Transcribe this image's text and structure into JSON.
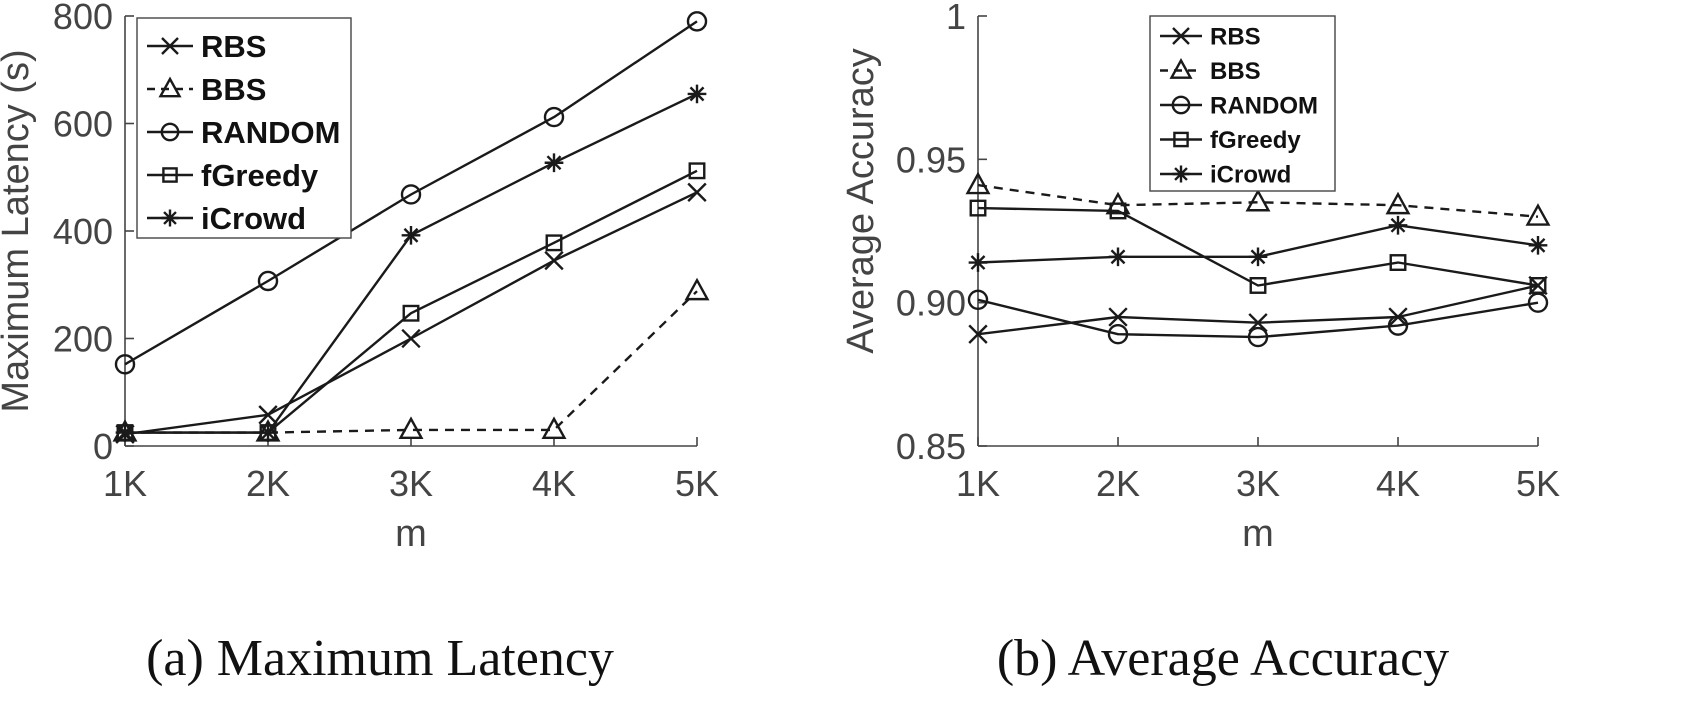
{
  "chart_data": [
    {
      "type": "line",
      "caption": "(a)  Maximum Latency",
      "xlabel": "m",
      "ylabel": "Maximum Latency (s)",
      "categories": [
        "1K",
        "2K",
        "3K",
        "4K",
        "5K"
      ],
      "ylim": [
        0,
        800
      ],
      "yticks": [
        0,
        200,
        400,
        600,
        800
      ],
      "ytick_labels": [
        "0",
        "200",
        "400",
        "600",
        "800"
      ],
      "grid": false,
      "legend": "top-left",
      "series": [
        {
          "name": "RBS",
          "marker": "x",
          "dashed": false,
          "values": [
            22,
            58,
            200,
            345,
            472
          ]
        },
        {
          "name": "BBS",
          "marker": "triangle",
          "dashed": true,
          "values": [
            25,
            25,
            30,
            30,
            288
          ]
        },
        {
          "name": "RANDOM",
          "marker": "circle",
          "dashed": false,
          "values": [
            152,
            307,
            468,
            612,
            790
          ]
        },
        {
          "name": "fGreedy",
          "marker": "square",
          "dashed": false,
          "values": [
            25,
            25,
            247,
            378,
            512
          ]
        },
        {
          "name": "iCrowd",
          "marker": "asterisk",
          "dashed": false,
          "values": [
            25,
            25,
            392,
            527,
            655
          ]
        }
      ]
    },
    {
      "type": "line",
      "caption": "(b)  Average Accuracy",
      "xlabel": "m",
      "ylabel": "Average Accuracy",
      "categories": [
        "1K",
        "2K",
        "3K",
        "4K",
        "5K"
      ],
      "ylim": [
        0.85,
        1
      ],
      "yticks": [
        0.85,
        0.9,
        0.95,
        1
      ],
      "ytick_labels": [
        "0.85",
        "0.90",
        "0.95",
        "1"
      ],
      "grid": false,
      "legend": "top-center",
      "series": [
        {
          "name": "RBS",
          "marker": "x",
          "dashed": false,
          "values": [
            0.889,
            0.895,
            0.893,
            0.895,
            0.906
          ]
        },
        {
          "name": "BBS",
          "marker": "triangle",
          "dashed": true,
          "values": [
            0.941,
            0.934,
            0.935,
            0.934,
            0.93
          ]
        },
        {
          "name": "RANDOM",
          "marker": "circle",
          "dashed": false,
          "values": [
            0.901,
            0.889,
            0.888,
            0.892,
            0.9
          ]
        },
        {
          "name": "fGreedy",
          "marker": "square",
          "dashed": false,
          "values": [
            0.933,
            0.932,
            0.906,
            0.914,
            0.906
          ]
        },
        {
          "name": "iCrowd",
          "marker": "asterisk",
          "dashed": false,
          "values": [
            0.914,
            0.916,
            0.916,
            0.927,
            0.92
          ]
        }
      ]
    }
  ]
}
